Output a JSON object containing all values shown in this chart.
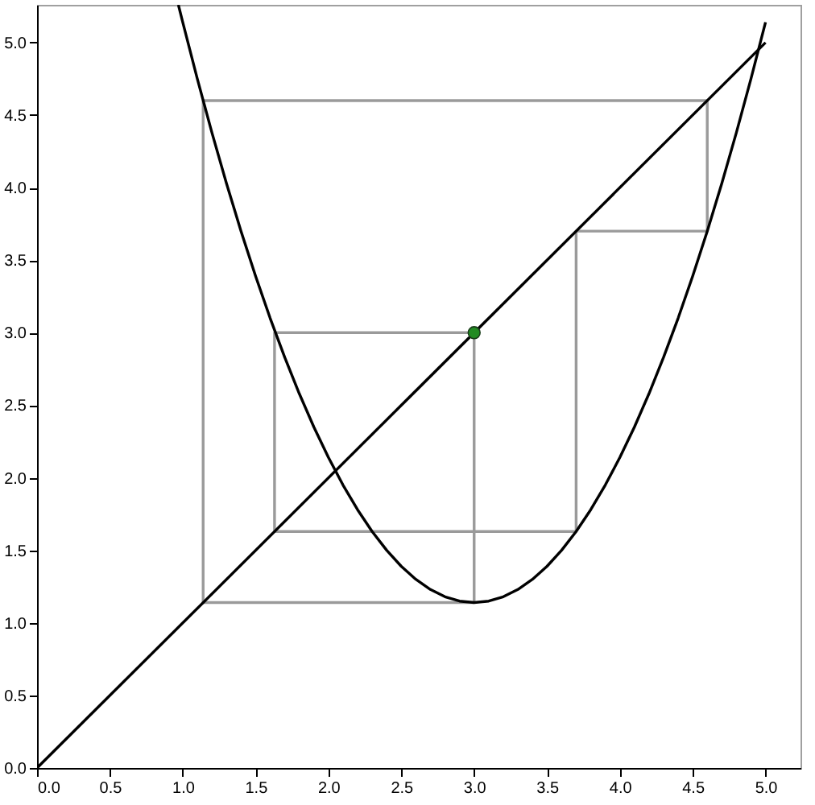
{
  "chart_data": {
    "type": "line",
    "xlim": [
      0,
      5.24
    ],
    "ylim": [
      0,
      5.26
    ],
    "xticks": [
      {
        "value": 0,
        "label": "0.0"
      },
      {
        "value": 0.5,
        "label": "0.5"
      },
      {
        "value": 1,
        "label": "1.0"
      },
      {
        "value": 1.5,
        "label": "1.5"
      },
      {
        "value": 2,
        "label": "2.0"
      },
      {
        "value": 2.5,
        "label": "2.5"
      },
      {
        "value": 3,
        "label": "3.0"
      },
      {
        "value": 3.5,
        "label": "3.5"
      },
      {
        "value": 4,
        "label": "4.0"
      },
      {
        "value": 4.5,
        "label": "4.5"
      },
      {
        "value": 5,
        "label": "5.0"
      }
    ],
    "yticks": [
      {
        "value": 0,
        "label": "0.0"
      },
      {
        "value": 0.5,
        "label": "0.5"
      },
      {
        "value": 1,
        "label": "1.0"
      },
      {
        "value": 1.5,
        "label": "1.5"
      },
      {
        "value": 2,
        "label": "2.0"
      },
      {
        "value": 2.5,
        "label": "2.5"
      },
      {
        "value": 3,
        "label": "3.0"
      },
      {
        "value": 3.5,
        "label": "3.5"
      },
      {
        "value": 4,
        "label": "4.0"
      },
      {
        "value": 4.5,
        "label": "4.5"
      },
      {
        "value": 5,
        "label": "5.0"
      }
    ],
    "grid": false,
    "series": [
      {
        "color": "#9a9a9a",
        "x": [
          1.63,
          3.0,
          3.0,
          1.14,
          1.14,
          4.6,
          4.6,
          3.7,
          3.7,
          1.63,
          1.63,
          3.0
        ],
        "values": [
          3.0,
          3.0,
          1.14,
          1.14,
          4.6,
          4.6,
          3.7,
          3.7,
          1.63,
          1.63,
          3.0,
          3.0
        ]
      },
      {
        "color": "#000000",
        "x": [
          0,
          5
        ],
        "values": [
          0,
          5
        ]
      },
      {
        "color": "#000000",
        "x": [
          0.97,
          1.0,
          1.1,
          1.2,
          1.3,
          1.4,
          1.5,
          1.6,
          1.7,
          1.8,
          1.9,
          2.0,
          2.1,
          2.2,
          2.3,
          2.4,
          2.5,
          2.6,
          2.7,
          2.8,
          2.9,
          3.0,
          3.1,
          3.2,
          3.3,
          3.4,
          3.5,
          3.6,
          3.7,
          3.8,
          3.9,
          4.0,
          4.1,
          4.2,
          4.3,
          4.4,
          4.5,
          4.6,
          4.7,
          4.8,
          4.9,
          5.0
        ],
        "values": [
          5.26,
          5.14,
          4.75,
          4.38,
          4.03,
          3.7,
          3.39,
          3.1,
          2.83,
          2.58,
          2.35,
          2.14,
          1.95,
          1.78,
          1.63,
          1.5,
          1.39,
          1.3,
          1.23,
          1.18,
          1.15,
          1.14,
          1.15,
          1.18,
          1.23,
          1.3,
          1.39,
          1.5,
          1.63,
          1.78,
          1.95,
          2.14,
          2.35,
          2.58,
          2.83,
          3.1,
          3.39,
          3.7,
          4.03,
          4.38,
          4.75,
          5.14
        ]
      },
      {
        "type": "scatter",
        "color": "#228b22",
        "marker": "circle",
        "x": [
          3.0
        ],
        "values": [
          3.0
        ]
      }
    ]
  }
}
